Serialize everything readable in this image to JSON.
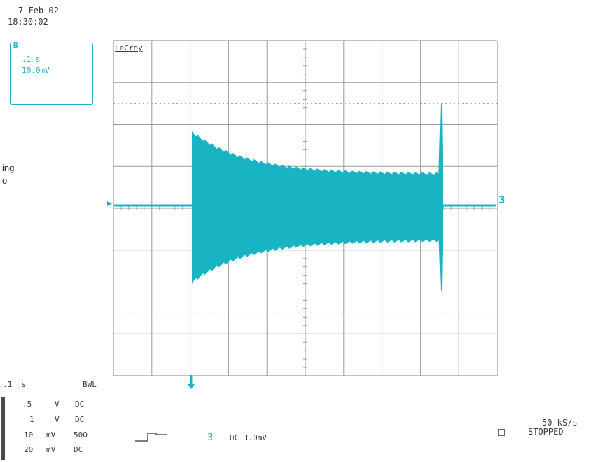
{
  "header": {
    "date": "7-Feb-02",
    "time": "18:30:02"
  },
  "trace_box": {
    "id": "B",
    "timebase": ".1 s",
    "volts": "10.0mV"
  },
  "brand": "LeCroy",
  "side_note": {
    "line1": "ing",
    "line2": "o"
  },
  "channel_marker": "3",
  "bottom_left": {
    "timebase": ".1  s",
    "bwl": "BWL",
    "rows": [
      {
        "v": ".5",
        "u": "V",
        "c": "DC"
      },
      {
        "v": "1",
        "u": "V",
        "c": "DC"
      },
      {
        "v": "10",
        "u": "mV",
        "c": "50Ω"
      },
      {
        "v": "20",
        "u": "mV",
        "c": "DC"
      }
    ]
  },
  "trigger_info": {
    "channel": "3",
    "coupling": "DC 1.0mV"
  },
  "sample_rate": "50 kS/s",
  "status": "STOPPED",
  "colors": {
    "trace": "#19b4c4",
    "grid": "#9a9a9a"
  }
}
